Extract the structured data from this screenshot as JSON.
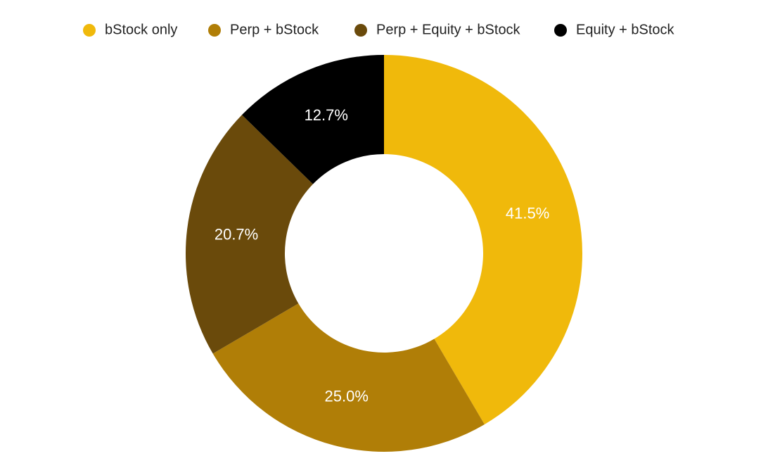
{
  "chart_data": {
    "type": "donut",
    "categories": [
      "bStock only",
      "Perp + bStock",
      "Perp + Equity + bStock",
      "Equity + bStock"
    ],
    "values": [
      41.5,
      25.0,
      20.7,
      12.7
    ],
    "value_labels": [
      "41.5%",
      "25.0%",
      "20.7%",
      "12.7%"
    ],
    "colors": [
      "#f0b90b",
      "#b07e07",
      "#6a4a0b",
      "#000000"
    ],
    "legend": "top"
  }
}
